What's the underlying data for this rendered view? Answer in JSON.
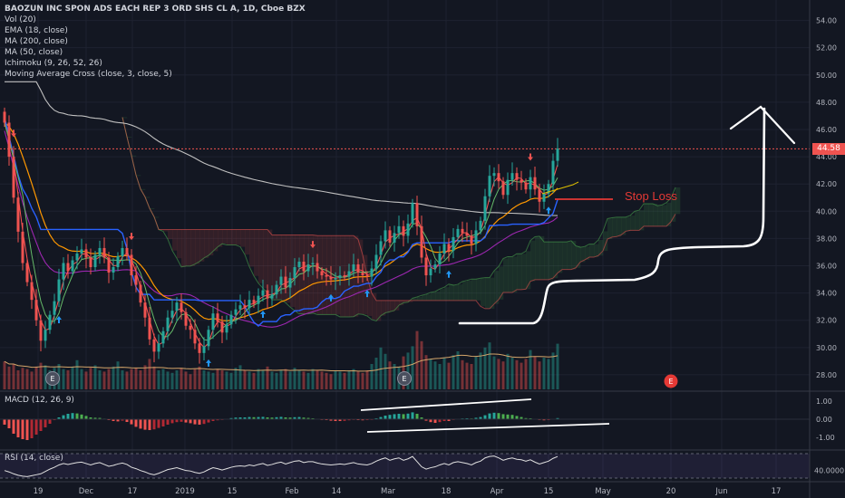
{
  "header": {
    "title": "BAOZUN INC SPON ADS EACH REP 3 ORD SHS CL A, 1D, Cboe BZX",
    "indicators": [
      "Vol (20)",
      "EMA (18, close)",
      "MA (200, close)",
      "MA (50, close)",
      "Ichimoku (9, 26, 52, 26)",
      "Moving Average Cross (close, 3, close, 5)"
    ]
  },
  "panels": {
    "macd_label": "MACD (12, 26, 9)",
    "rsi_label": "RSI (14, close)"
  },
  "last_price": "44.58",
  "stop_loss_label": "Stop Loss",
  "earnings_marker": "E",
  "colors": {
    "background": "#131722",
    "up": "#26a69a",
    "down": "#ef5350",
    "ema": "#ff9800",
    "ma200": "#c0c0c0",
    "ma50": "#9c27b0",
    "annotation": "#ffffff",
    "stop_loss": "#e53935"
  },
  "chart_data": {
    "type": "candlestick",
    "title": "BAOZUN INC SPON ADS EACH REP 3 ORD SHS CL A, 1D, Cboe BZX",
    "price_axis": {
      "ylim": [
        26.8,
        55.5
      ],
      "ticks": [
        "54.00",
        "52.00",
        "50.00",
        "48.00",
        "46.00",
        "44.00",
        "42.00",
        "40.00",
        "38.00",
        "36.00",
        "34.00",
        "32.00",
        "30.00",
        "28.00"
      ]
    },
    "macd_axis": {
      "ticks": [
        "1.00",
        "0.00",
        "-1.00"
      ]
    },
    "rsi_axis": {
      "ticks": [
        "40.0000"
      ]
    },
    "x_tick_labels": [
      "19",
      "Dec",
      "17",
      "2019",
      "15",
      "Feb",
      "14",
      "Mar",
      "18",
      "Apr",
      "15",
      "May",
      "20",
      "Jun",
      "17"
    ],
    "closes": [
      46.5,
      44.0,
      41.0,
      38.5,
      36.2,
      34.8,
      33.5,
      32.0,
      30.5,
      31.3,
      32.4,
      33.4,
      35.0,
      36.2,
      35.6,
      36.4,
      36.9,
      37.2,
      36.6,
      35.9,
      36.8,
      37.3,
      36.6,
      35.5,
      35.9,
      36.7,
      37.3,
      36.8,
      35.3,
      34.6,
      33.3,
      32.2,
      30.6,
      29.7,
      30.3,
      31.2,
      32.2,
      32.7,
      33.3,
      32.6,
      31.6,
      31.3,
      30.3,
      29.6,
      30.1,
      31.3,
      32.5,
      31.9,
      31.1,
      31.7,
      32.4,
      32.8,
      33.1,
      32.9,
      33.5,
      33.2,
      33.8,
      34.2,
      33.6,
      33.9,
      34.6,
      35.2,
      34.4,
      35.1,
      35.9,
      36.3,
      35.6,
      36.1,
      36.2,
      35.6,
      35.3,
      35.2,
      35.0,
      35.1,
      35.3,
      35.2,
      35.6,
      36.1,
      35.5,
      35.3,
      35.2,
      35.8,
      36.8,
      37.8,
      38.6,
      37.7,
      38.4,
      38.9,
      38.2,
      39.1,
      40.6,
      38.9,
      36.6,
      35.3,
      35.8,
      36.1,
      36.9,
      37.6,
      37.1,
      38.1,
      38.7,
      38.4,
      38.2,
      37.6,
      38.6,
      39.3,
      41.1,
      42.6,
      42.8,
      42.2,
      41.2,
      42.3,
      42.8,
      42.3,
      42.1,
      41.6,
      42.5,
      41.6,
      40.7,
      41.3,
      42.0,
      43.7,
      44.6
    ],
    "volume": [
      2.2,
      1.8,
      2.0,
      1.5,
      1.7,
      1.6,
      1.4,
      1.8,
      2.1,
      1.9,
      1.5,
      1.7,
      2.0,
      1.6,
      1.5,
      1.8,
      2.3,
      1.6,
      1.4,
      1.7,
      1.9,
      1.5,
      1.4,
      1.6,
      1.8,
      2.2,
      1.5,
      1.4,
      1.6,
      1.7,
      1.5,
      1.9,
      2.4,
      1.8,
      1.5,
      1.6,
      1.4,
      1.3,
      1.5,
      1.7,
      1.4,
      1.2,
      1.6,
      1.8,
      1.5,
      1.4,
      1.3,
      1.6,
      1.5,
      1.4,
      1.3,
      1.7,
      1.9,
      1.5,
      1.4,
      1.3,
      1.6,
      1.5,
      1.8,
      1.4,
      1.3,
      1.5,
      1.6,
      1.4,
      1.7,
      1.5,
      1.4,
      1.3,
      1.6,
      1.5,
      1.4,
      1.3,
      1.2,
      1.5,
      1.4,
      1.3,
      1.5,
      1.6,
      1.4,
      1.3,
      1.5,
      2.0,
      2.5,
      3.3,
      2.8,
      2.2,
      2.0,
      1.8,
      2.6,
      2.9,
      3.4,
      4.6,
      3.8,
      2.7,
      2.4,
      2.2,
      2.0,
      2.5,
      2.1,
      2.7,
      3.0,
      2.3,
      2.1,
      2.0,
      2.6,
      2.9,
      3.3,
      3.7,
      2.6,
      2.4,
      2.2,
      2.8,
      2.5,
      2.3,
      2.1,
      2.4,
      3.1,
      2.6,
      2.2,
      2.5,
      2.4,
      2.9,
      3.6
    ],
    "macd_hist": [
      -0.3,
      -0.5,
      -0.8,
      -1.0,
      -1.1,
      -1.15,
      -1.05,
      -0.85,
      -0.65,
      -0.45,
      -0.25,
      -0.05,
      0.1,
      0.22,
      0.3,
      0.34,
      0.32,
      0.26,
      0.18,
      0.1,
      0.08,
      0.07,
      0.03,
      -0.05,
      -0.1,
      -0.12,
      -0.08,
      -0.15,
      -0.28,
      -0.42,
      -0.52,
      -0.58,
      -0.6,
      -0.56,
      -0.48,
      -0.4,
      -0.3,
      -0.22,
      -0.16,
      -0.14,
      -0.18,
      -0.22,
      -0.28,
      -0.3,
      -0.26,
      -0.18,
      -0.1,
      -0.06,
      -0.02,
      0.02,
      0.06,
      0.09,
      0.1,
      0.1,
      0.12,
      0.11,
      0.12,
      0.13,
      0.1,
      0.09,
      0.11,
      0.13,
      0.1,
      0.09,
      0.11,
      0.12,
      0.09,
      0.07,
      0.05,
      0.02,
      -0.02,
      -0.05,
      -0.08,
      -0.1,
      -0.1,
      -0.09,
      -0.06,
      -0.04,
      -0.05,
      -0.06,
      -0.05,
      -0.01,
      0.05,
      0.12,
      0.2,
      0.24,
      0.28,
      0.3,
      0.28,
      0.31,
      0.38,
      0.3,
      0.1,
      -0.08,
      -0.16,
      -0.2,
      -0.16,
      -0.1,
      -0.1,
      -0.04,
      0.02,
      0.04,
      0.05,
      0.04,
      0.08,
      0.12,
      0.22,
      0.32,
      0.36,
      0.34,
      0.28,
      0.26,
      0.24,
      0.18,
      0.12,
      0.06,
      0.05,
      0.02,
      -0.04,
      -0.06,
      -0.05,
      0.02,
      0.06
    ],
    "rsi": [
      40,
      37,
      33,
      30,
      28,
      27,
      29,
      31,
      33,
      38,
      43,
      47,
      52,
      55,
      53,
      55,
      57,
      58,
      55,
      52,
      55,
      57,
      53,
      49,
      51,
      54,
      56,
      53,
      47,
      44,
      40,
      37,
      33,
      31,
      34,
      38,
      42,
      44,
      46,
      43,
      40,
      39,
      36,
      34,
      37,
      42,
      46,
      44,
      41,
      44,
      47,
      49,
      50,
      49,
      52,
      50,
      53,
      55,
      51,
      53,
      56,
      58,
      54,
      57,
      60,
      61,
      57,
      59,
      59,
      56,
      54,
      53,
      52,
      53,
      54,
      53,
      55,
      57,
      54,
      53,
      52,
      55,
      60,
      64,
      67,
      62,
      65,
      67,
      62,
      65,
      70,
      59,
      48,
      43,
      46,
      48,
      52,
      55,
      52,
      57,
      59,
      57,
      55,
      52,
      57,
      60,
      67,
      70,
      71,
      67,
      62,
      65,
      67,
      64,
      63,
      60,
      63,
      58,
      54,
      57,
      60,
      66,
      70
    ]
  }
}
